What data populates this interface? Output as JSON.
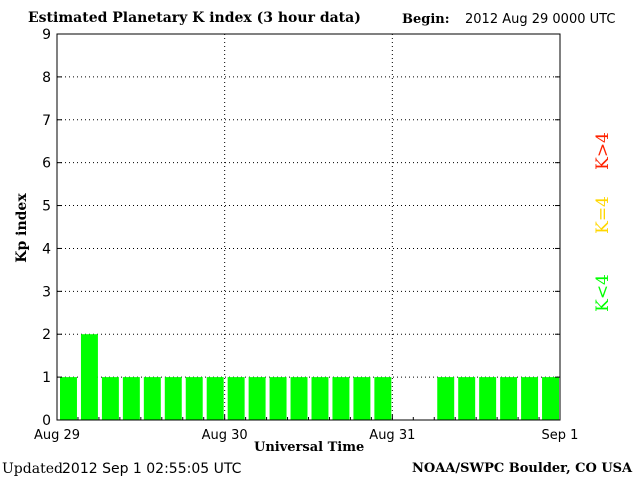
{
  "title": "Estimated Planetary K index (3 hour data)",
  "begin_label": "Begin:",
  "begin_value": "2012 Aug 29 0000 UTC",
  "updated_label": "Updated",
  "updated_value": "2012 Sep  1 02:55:05 UTC",
  "credit": "NOAA/SWPC Boulder, CO USA",
  "legend": [
    {
      "label": "K<4",
      "color": "#00ff00"
    },
    {
      "label": "K=4",
      "color": "#ffd700"
    },
    {
      "label": "K>4",
      "color": "#ff2200"
    }
  ],
  "chart_data": {
    "type": "bar",
    "xlabel": "Universal Time",
    "ylabel": "Kp index",
    "ylim": [
      0,
      9
    ],
    "yticks": [
      0,
      1,
      2,
      3,
      4,
      5,
      6,
      7,
      8,
      9
    ],
    "xticks": [
      "Aug 29",
      "Aug 30",
      "Aug 31",
      "Sep 1"
    ],
    "grid": true,
    "bar_color": "#00ff00",
    "interval_hours": 3,
    "slots_per_day": 8,
    "values": [
      1,
      2,
      1,
      1,
      1,
      1,
      1,
      1,
      1,
      1,
      1,
      1,
      1,
      1,
      1,
      1,
      null,
      null,
      1,
      1,
      1,
      1,
      1,
      1
    ]
  }
}
